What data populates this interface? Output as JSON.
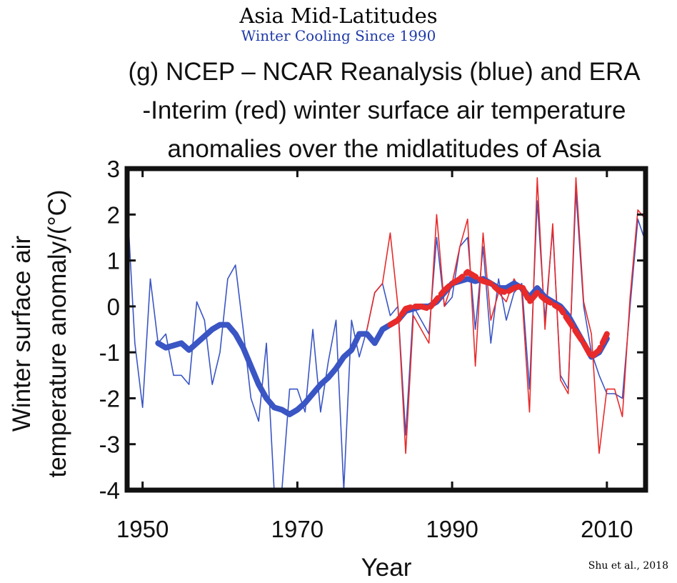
{
  "header": {
    "title": "Asia Mid-Latitudes",
    "subtitle": "Winter Cooling Since 1990"
  },
  "caption": {
    "line1": "(g) NCEP – NCAR Reanalysis (blue) and ERA",
    "line2": "-Interim (red) winter surface air temperature",
    "line3": "anomalies over the midlatitudes of Asia"
  },
  "source": "Shu et al., 2018",
  "chart_data": {
    "type": "line",
    "title": "(g) NCEP – NCAR Reanalysis (blue) and ERA -Interim (red) winter surface air temperature anomalies over the midlatitudes of Asia",
    "xlabel": "Year",
    "ylabel_lines": [
      "Winter surface air",
      "temperature anomaly/(°C)"
    ],
    "xlim": [
      1948,
      2015
    ],
    "ylim": [
      -4,
      3
    ],
    "x_ticks": [
      1950,
      1970,
      1990,
      2010
    ],
    "y_ticks": [
      -4,
      -3,
      -2,
      -1,
      0,
      1,
      2,
      3
    ],
    "grid": false,
    "colors": {
      "ncep": "#3a55c4",
      "era": "#e82a2a"
    },
    "series": [
      {
        "key": "ncep",
        "style": "thin",
        "x": [
          1948,
          1949,
          1950,
          1951,
          1952,
          1953,
          1954,
          1955,
          1956,
          1957,
          1958,
          1959,
          1960,
          1961,
          1962,
          1963,
          1964,
          1965,
          1966,
          1967,
          1968,
          1969,
          1970,
          1971,
          1972,
          1973,
          1974,
          1975,
          1976,
          1977,
          1978,
          1979,
          1980,
          1981,
          1982,
          1983,
          1984,
          1985,
          1986,
          1987,
          1988,
          1989,
          1990,
          1991,
          1992,
          1993,
          1994,
          1995,
          1996,
          1997,
          1998,
          1999,
          2000,
          2001,
          2002,
          2003,
          2004,
          2005,
          2006,
          2007,
          2008,
          2009,
          2010,
          2011,
          2012,
          2013,
          2014,
          2015
        ],
        "values": [
          2.3,
          -0.8,
          -2.2,
          0.6,
          -0.8,
          -0.6,
          -1.5,
          -1.5,
          -1.7,
          0.1,
          -0.3,
          -1.7,
          -1.0,
          0.6,
          0.9,
          -0.5,
          -2.0,
          -2.5,
          -0.8,
          -4.0,
          -4.0,
          -1.8,
          -1.8,
          -2.3,
          -0.5,
          -2.3,
          -1.2,
          -0.3,
          -4.0,
          -0.3,
          -1.1,
          -0.5,
          0.3,
          0.5,
          -0.2,
          0.0,
          -2.8,
          0.0,
          -0.3,
          -0.6,
          1.5,
          0.0,
          0.2,
          1.3,
          1.5,
          -0.5,
          1.3,
          -0.8,
          0.6,
          -0.3,
          0.3,
          0.5,
          -1.8,
          2.3,
          -0.3,
          1.7,
          -1.5,
          -1.8,
          2.5,
          0.0,
          -1.0,
          -1.5,
          -1.9,
          -1.9,
          -2.0,
          0.0,
          1.9,
          1.4
        ]
      },
      {
        "key": "era",
        "style": "thin",
        "x": [
          1979,
          1980,
          1981,
          1982,
          1983,
          1984,
          1985,
          1986,
          1987,
          1988,
          1989,
          1990,
          1991,
          1992,
          1993,
          1994,
          1995,
          1996,
          1997,
          1998,
          1999,
          2000,
          2001,
          2002,
          2003,
          2004,
          2005,
          2006,
          2007,
          2008,
          2009,
          2010,
          2011,
          2012,
          2013,
          2014,
          2015
        ],
        "values": [
          -0.5,
          0.3,
          0.5,
          1.6,
          0.0,
          -3.2,
          -0.2,
          -0.5,
          -0.8,
          2.0,
          0.0,
          0.5,
          1.3,
          1.9,
          -1.3,
          1.6,
          -0.3,
          0.3,
          0.1,
          0.6,
          0.3,
          -2.3,
          2.8,
          -0.5,
          1.8,
          -1.6,
          -1.9,
          2.8,
          0.1,
          -0.6,
          -3.2,
          -1.8,
          -1.8,
          -2.4,
          0.2,
          2.1,
          1.9
        ]
      },
      {
        "key": "ncep",
        "style": "smooth",
        "x": [
          1952,
          1953,
          1954,
          1955,
          1956,
          1957,
          1958,
          1959,
          1960,
          1961,
          1962,
          1963,
          1964,
          1965,
          1966,
          1967,
          1968,
          1969,
          1970,
          1971,
          1972,
          1973,
          1974,
          1975,
          1976,
          1977,
          1978,
          1979,
          1980,
          1981,
          1982,
          1983,
          1984,
          1985,
          1986,
          1987,
          1988,
          1989,
          1990,
          1991,
          1992,
          1993,
          1994,
          1995,
          1996,
          1997,
          1998,
          1999,
          2000,
          2001,
          2002,
          2003,
          2004,
          2005,
          2006,
          2007,
          2008,
          2009,
          2010
        ],
        "values": [
          -0.8,
          -0.9,
          -0.85,
          -0.8,
          -0.95,
          -0.8,
          -0.65,
          -0.5,
          -0.4,
          -0.4,
          -0.6,
          -0.9,
          -1.3,
          -1.7,
          -2.0,
          -2.2,
          -2.25,
          -2.35,
          -2.25,
          -2.1,
          -1.9,
          -1.7,
          -1.55,
          -1.35,
          -1.1,
          -0.95,
          -0.6,
          -0.6,
          -0.8,
          -0.5,
          -0.4,
          -0.3,
          -0.1,
          -0.05,
          0.0,
          0.0,
          0.1,
          0.3,
          0.5,
          0.55,
          0.6,
          0.55,
          0.6,
          0.5,
          0.4,
          0.4,
          0.5,
          0.4,
          0.2,
          0.4,
          0.2,
          0.1,
          0.0,
          -0.2,
          -0.5,
          -0.8,
          -1.1,
          -1.0,
          -0.7
        ]
      },
      {
        "key": "era",
        "style": "smooth-dashed",
        "x": [
          1982,
          1983,
          1984,
          1985,
          1986,
          1987,
          1988,
          1989,
          1990,
          1991,
          1992,
          1993,
          1994,
          1995,
          1996,
          1997,
          1998,
          1999,
          2000,
          2001,
          2002,
          2003,
          2004,
          2005,
          2006,
          2007,
          2008,
          2009,
          2010
        ],
        "values": [
          -0.4,
          -0.3,
          -0.05,
          0.0,
          0.0,
          -0.05,
          0.15,
          0.35,
          0.5,
          0.6,
          0.75,
          0.65,
          0.55,
          0.5,
          0.35,
          0.3,
          0.4,
          0.45,
          0.1,
          0.3,
          0.15,
          0.05,
          -0.05,
          -0.3,
          -0.55,
          -0.8,
          -1.1,
          -0.95,
          -0.6
        ]
      }
    ]
  }
}
